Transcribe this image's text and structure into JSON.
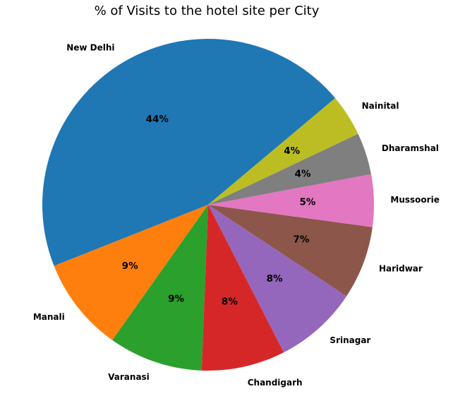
{
  "chart_data": {
    "type": "pie",
    "title": "% of Visits to the hotel site per City",
    "categories": [
      "New Delhi",
      "Manali",
      "Varanasi",
      "Chandigarh",
      "Srinagar",
      "Haridwar",
      "Mussoorie",
      "Dharamshal",
      "Nainital"
    ],
    "values": [
      44,
      9,
      9,
      8,
      8,
      7,
      5,
      4,
      4
    ],
    "value_labels": [
      "44%",
      "9%",
      "9%",
      "8%",
      "8%",
      "7%",
      "5%",
      "4%",
      "4%"
    ],
    "colors": [
      "#1f77b4",
      "#ff7f0e",
      "#2ca02c",
      "#d62728",
      "#9467bd",
      "#8c564b",
      "#e377c2",
      "#7f7f7f",
      "#bcbd22"
    ],
    "start_angle_deg": 40,
    "direction": "counterclockwise",
    "legend": "none"
  }
}
